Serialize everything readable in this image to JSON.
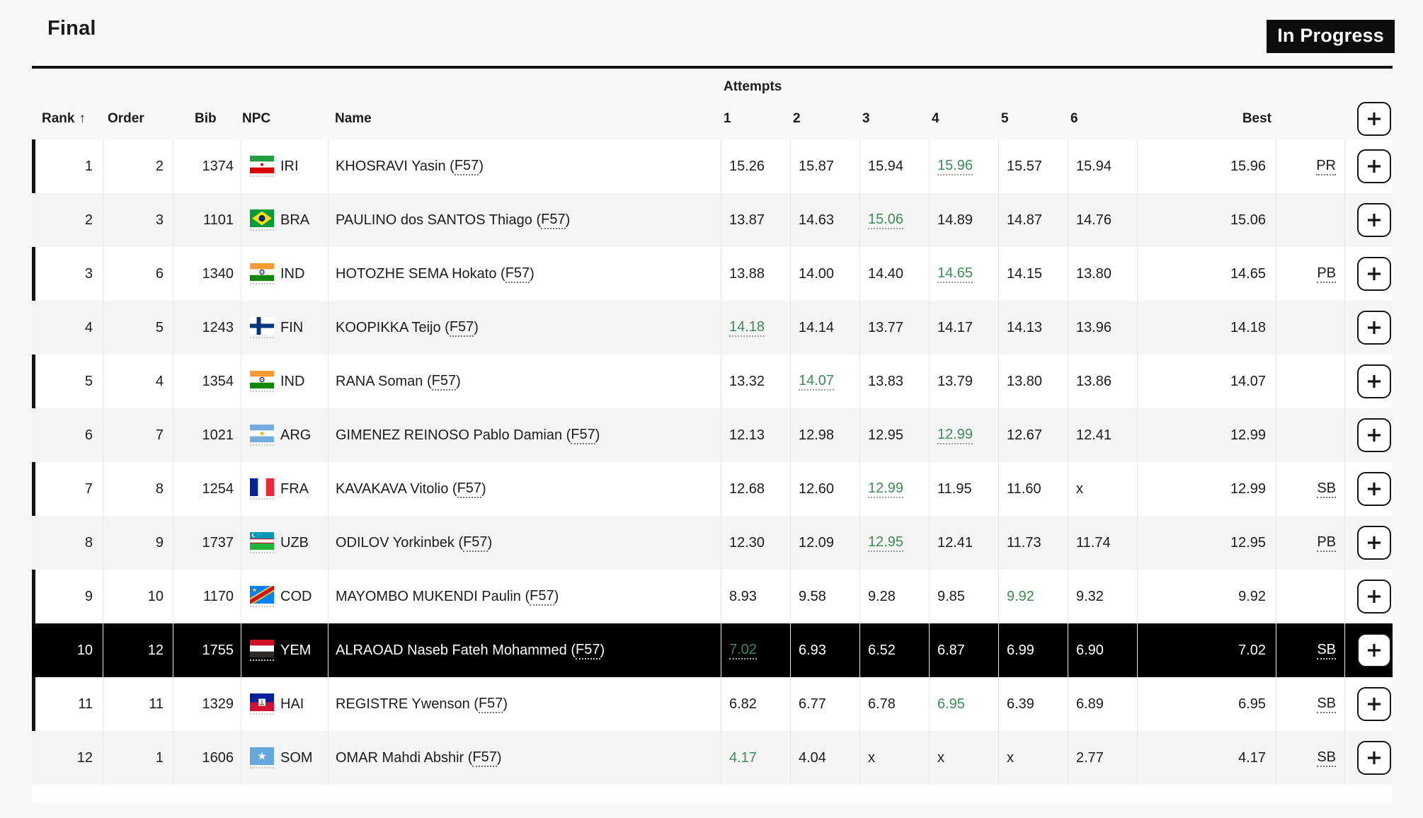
{
  "page": {
    "title": "Final",
    "status_badge": "In Progress"
  },
  "table": {
    "group_header": "Attempts",
    "sort_arrow": "↑",
    "columns": {
      "rank": "Rank",
      "order": "Order",
      "bib": "Bib",
      "npc": "NPC",
      "name": "Name",
      "attempts": [
        "1",
        "2",
        "3",
        "4",
        "5",
        "6"
      ],
      "best": "Best"
    },
    "colors": {
      "best_attempt_green": "#3c8c58",
      "highlight_row_bg": "#000000",
      "badge_bg": "#0c0c0c"
    },
    "rows": [
      {
        "rank": "1",
        "order": "2",
        "bib": "1374",
        "npc": "IRI",
        "name": "KHOSRAVI Yasin",
        "class": "F57",
        "attempts": [
          {
            "v": "15.26"
          },
          {
            "v": "15.87"
          },
          {
            "v": "15.94"
          },
          {
            "v": "15.96",
            "green": true,
            "u": true
          },
          {
            "v": "15.57"
          },
          {
            "v": "15.94"
          }
        ],
        "best": "15.96",
        "note": "PR",
        "highlighted": false,
        "bar": true
      },
      {
        "rank": "2",
        "order": "3",
        "bib": "1101",
        "npc": "BRA",
        "name": "PAULINO dos SANTOS Thiago",
        "class": "F57",
        "attempts": [
          {
            "v": "13.87"
          },
          {
            "v": "14.63"
          },
          {
            "v": "15.06",
            "green": true,
            "u": true
          },
          {
            "v": "14.89"
          },
          {
            "v": "14.87"
          },
          {
            "v": "14.76"
          }
        ],
        "best": "15.06",
        "note": "",
        "highlighted": false,
        "bar": false
      },
      {
        "rank": "3",
        "order": "6",
        "bib": "1340",
        "npc": "IND",
        "name": "HOTOZHE SEMA Hokato",
        "class": "F57",
        "attempts": [
          {
            "v": "13.88"
          },
          {
            "v": "14.00"
          },
          {
            "v": "14.40"
          },
          {
            "v": "14.65",
            "green": true,
            "u": true
          },
          {
            "v": "14.15"
          },
          {
            "v": "13.80"
          }
        ],
        "best": "14.65",
        "note": "PB",
        "highlighted": false,
        "bar": true
      },
      {
        "rank": "4",
        "order": "5",
        "bib": "1243",
        "npc": "FIN",
        "name": "KOOPIKKA Teijo",
        "class": "F57",
        "attempts": [
          {
            "v": "14.18",
            "green": true,
            "u": true
          },
          {
            "v": "14.14"
          },
          {
            "v": "13.77"
          },
          {
            "v": "14.17"
          },
          {
            "v": "14.13"
          },
          {
            "v": "13.96"
          }
        ],
        "best": "14.18",
        "note": "",
        "highlighted": false,
        "bar": false
      },
      {
        "rank": "5",
        "order": "4",
        "bib": "1354",
        "npc": "IND",
        "name": "RANA Soman",
        "class": "F57",
        "attempts": [
          {
            "v": "13.32"
          },
          {
            "v": "14.07",
            "green": true,
            "u": true
          },
          {
            "v": "13.83"
          },
          {
            "v": "13.79"
          },
          {
            "v": "13.80"
          },
          {
            "v": "13.86"
          }
        ],
        "best": "14.07",
        "note": "",
        "highlighted": false,
        "bar": true
      },
      {
        "rank": "6",
        "order": "7",
        "bib": "1021",
        "npc": "ARG",
        "name": "GIMENEZ REINOSO Pablo Damian",
        "class": "F57",
        "attempts": [
          {
            "v": "12.13"
          },
          {
            "v": "12.98"
          },
          {
            "v": "12.95"
          },
          {
            "v": "12.99",
            "green": true,
            "u": true
          },
          {
            "v": "12.67"
          },
          {
            "v": "12.41"
          }
        ],
        "best": "12.99",
        "note": "",
        "highlighted": false,
        "bar": false
      },
      {
        "rank": "7",
        "order": "8",
        "bib": "1254",
        "npc": "FRA",
        "name": "KAVAKAVA Vitolio",
        "class": "F57",
        "attempts": [
          {
            "v": "12.68"
          },
          {
            "v": "12.60"
          },
          {
            "v": "12.99",
            "green": true,
            "u": true
          },
          {
            "v": "11.95"
          },
          {
            "v": "11.60"
          },
          {
            "v": "x"
          }
        ],
        "best": "12.99",
        "note": "SB",
        "highlighted": false,
        "bar": true
      },
      {
        "rank": "8",
        "order": "9",
        "bib": "1737",
        "npc": "UZB",
        "name": "ODILOV Yorkinbek",
        "class": "F57",
        "attempts": [
          {
            "v": "12.30"
          },
          {
            "v": "12.09"
          },
          {
            "v": "12.95",
            "green": true,
            "u": true
          },
          {
            "v": "12.41"
          },
          {
            "v": "11.73"
          },
          {
            "v": "11.74"
          }
        ],
        "best": "12.95",
        "note": "PB",
        "highlighted": false,
        "bar": false
      },
      {
        "rank": "9",
        "order": "10",
        "bib": "1170",
        "npc": "COD",
        "name": "MAYOMBO MUKENDI Paulin",
        "class": "F57",
        "attempts": [
          {
            "v": "8.93"
          },
          {
            "v": "9.58"
          },
          {
            "v": "9.28"
          },
          {
            "v": "9.85"
          },
          {
            "v": "9.92",
            "green": true,
            "u": false
          },
          {
            "v": "9.32"
          }
        ],
        "best": "9.92",
        "note": "",
        "highlighted": false,
        "bar": true
      },
      {
        "rank": "10",
        "order": "12",
        "bib": "1755",
        "npc": "YEM",
        "name": "ALRAOAD Naseb Fateh Mohammed",
        "class": "F57",
        "attempts": [
          {
            "v": "7.02",
            "green": true,
            "u": true
          },
          {
            "v": "6.93"
          },
          {
            "v": "6.52"
          },
          {
            "v": "6.87"
          },
          {
            "v": "6.99"
          },
          {
            "v": "6.90"
          }
        ],
        "best": "7.02",
        "note": "SB",
        "highlighted": true,
        "bar": false
      },
      {
        "rank": "11",
        "order": "11",
        "bib": "1329",
        "npc": "HAI",
        "name": "REGISTRE Ywenson",
        "class": "F57",
        "attempts": [
          {
            "v": "6.82"
          },
          {
            "v": "6.77"
          },
          {
            "v": "6.78"
          },
          {
            "v": "6.95",
            "green": true,
            "u": false
          },
          {
            "v": "6.39"
          },
          {
            "v": "6.89"
          }
        ],
        "best": "6.95",
        "note": "SB",
        "highlighted": false,
        "bar": true
      },
      {
        "rank": "12",
        "order": "1",
        "bib": "1606",
        "npc": "SOM",
        "name": "OMAR Mahdi Abshir",
        "class": "F57",
        "attempts": [
          {
            "v": "4.17",
            "green": true,
            "u": false
          },
          {
            "v": "4.04"
          },
          {
            "v": "x"
          },
          {
            "v": "x"
          },
          {
            "v": "x"
          },
          {
            "v": "2.77"
          }
        ],
        "best": "4.17",
        "note": "SB",
        "highlighted": false,
        "bar": false
      }
    ]
  }
}
